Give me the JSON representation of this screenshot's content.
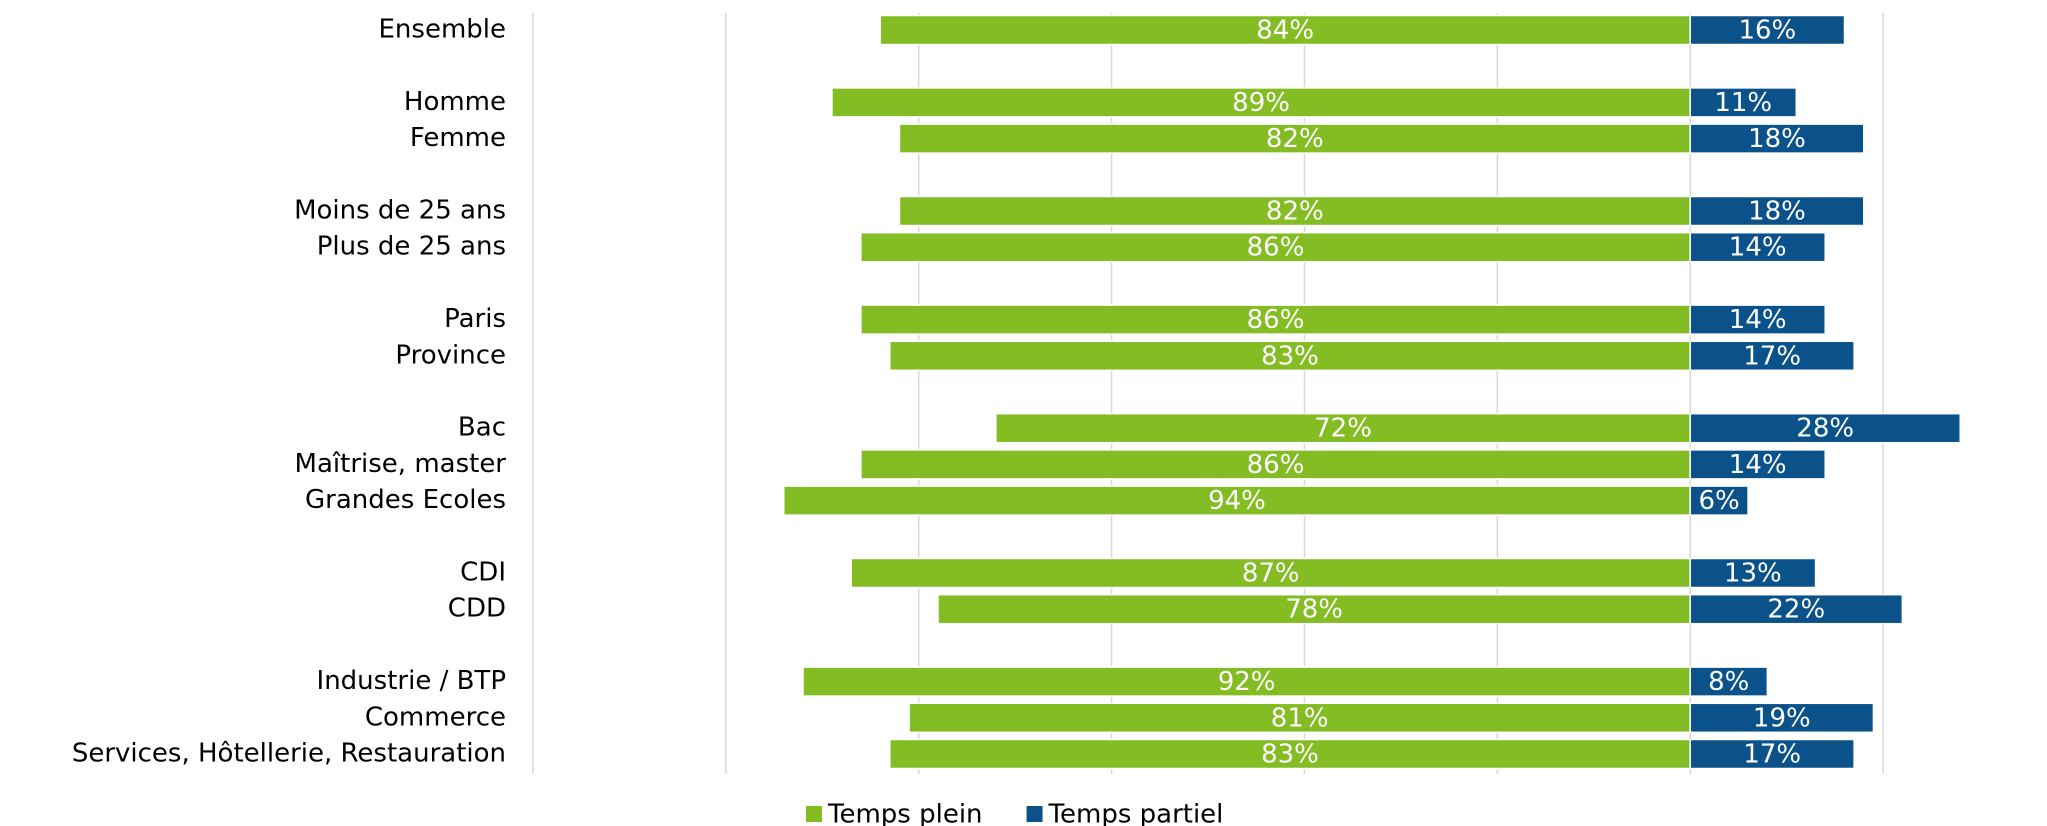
{
  "chart_data": {
    "type": "diverging-bar",
    "categories": [
      "Ensemble",
      null,
      "Homme",
      "Femme",
      null,
      "Moins de 25 ans",
      "Plus de 25 ans",
      null,
      "Paris",
      "Province",
      null,
      "Bac",
      "Maîtrise, master",
      "Grandes Ecoles",
      null,
      "CDI",
      "CDD",
      null,
      "Industrie / BTP",
      "Commerce",
      "Services, Hôtellerie, Restauration"
    ],
    "series": [
      {
        "name": "Temps plein",
        "color": "#84bc24",
        "direction": "left",
        "values": [
          84,
          null,
          89,
          82,
          null,
          82,
          86,
          null,
          86,
          83,
          null,
          72,
          86,
          94,
          null,
          87,
          78,
          null,
          92,
          81,
          83
        ],
        "value_labels": [
          "84%",
          null,
          "89%",
          "82%",
          null,
          "82%",
          "86%",
          null,
          "86%",
          "83%",
          null,
          "72%",
          "86%",
          "94%",
          null,
          "87%",
          "78%",
          null,
          "92%",
          "81%",
          "83%"
        ]
      },
      {
        "name": "Temps partiel",
        "color": "#0a5289",
        "direction": "right",
        "values": [
          16,
          null,
          11,
          18,
          null,
          18,
          14,
          null,
          14,
          17,
          null,
          28,
          14,
          6,
          null,
          13,
          22,
          null,
          8,
          19,
          17
        ],
        "value_labels": [
          "16%",
          null,
          "11%",
          "18%",
          null,
          "18%",
          "14%",
          null,
          "14%",
          "17%",
          null,
          "28%",
          "14%",
          "6%",
          null,
          "13%",
          "22%",
          null,
          "8%",
          "19%",
          "17%"
        ]
      }
    ],
    "xlim": [
      -120,
      37
    ],
    "xticks": [
      -120,
      -100,
      -80,
      -60,
      -40,
      -20,
      0,
      20
    ],
    "grid": true,
    "legend": "bottom"
  }
}
